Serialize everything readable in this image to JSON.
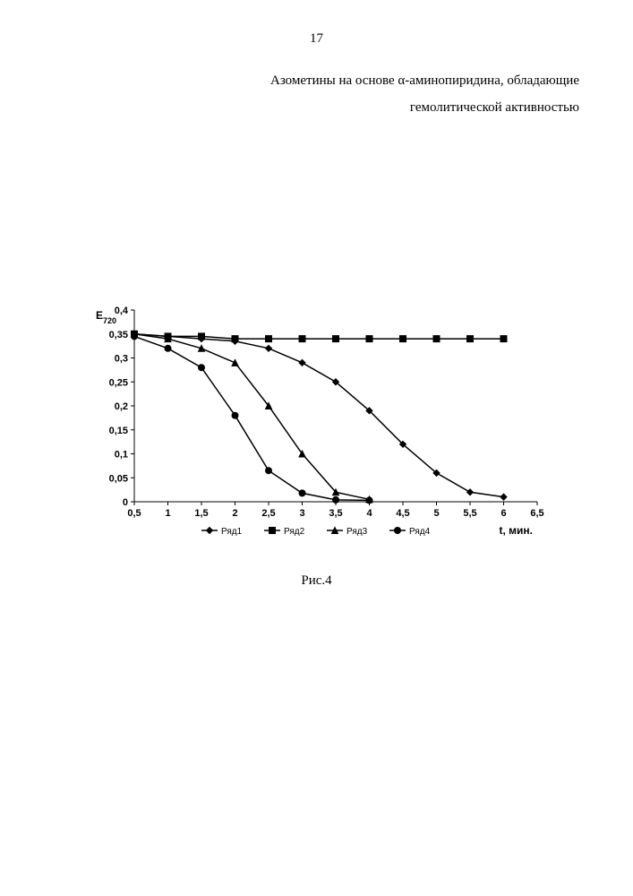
{
  "page_number": "17",
  "title_line1": "Азометины на основе α-аминопиридина, обладающие",
  "title_line2": "гемолитической активностью",
  "caption": "Рис.4",
  "chart": {
    "type": "line",
    "y_axis_label": "E",
    "y_axis_sub": "720",
    "x_axis_label": "t, мин.",
    "x_ticks": [
      "0,5",
      "1",
      "1,5",
      "2",
      "2,5",
      "3",
      "3,5",
      "4",
      "4,5",
      "5",
      "5,5",
      "6",
      "6,5"
    ],
    "y_ticks": [
      "0",
      "0,05",
      "0,1",
      "0,15",
      "0,2",
      "0,25",
      "0,3",
      "0,35",
      "0,4"
    ],
    "xlim": [
      0.5,
      6.5
    ],
    "ylim": [
      0,
      0.4
    ],
    "x_tick_step": 0.5,
    "y_tick_step": 0.05,
    "background_color": "#ffffff",
    "axis_color": "#000000",
    "line_color": "#000000",
    "line_width": 1.5,
    "marker_size": 5,
    "tick_fontsize": 11,
    "label_fontsize": 12,
    "legend_fontsize": 10,
    "grid": false,
    "series": [
      {
        "name": "Ряд1",
        "marker": "diamond",
        "x": [
          0.5,
          1,
          1.5,
          2,
          2.5,
          3,
          3.5,
          4,
          4.5,
          5,
          5.5,
          6
        ],
        "y": [
          0.35,
          0.345,
          0.34,
          0.335,
          0.32,
          0.29,
          0.25,
          0.19,
          0.12,
          0.06,
          0.02,
          0.01
        ]
      },
      {
        "name": "Ряд2",
        "marker": "square",
        "x": [
          0.5,
          1,
          1.5,
          2,
          2.5,
          3,
          3.5,
          4,
          4.5,
          5,
          5.5,
          6
        ],
        "y": [
          0.35,
          0.345,
          0.345,
          0.34,
          0.34,
          0.34,
          0.34,
          0.34,
          0.34,
          0.34,
          0.34,
          0.34
        ]
      },
      {
        "name": "Ряд3",
        "marker": "triangle",
        "x": [
          0.5,
          1,
          1.5,
          2,
          2.5,
          3,
          3.5,
          4
        ],
        "y": [
          0.35,
          0.34,
          0.32,
          0.29,
          0.2,
          0.1,
          0.02,
          0.005
        ]
      },
      {
        "name": "Ряд4",
        "marker": "circle",
        "x": [
          0.5,
          1,
          1.5,
          2,
          2.5,
          3,
          3.5,
          4
        ],
        "y": [
          0.345,
          0.32,
          0.28,
          0.18,
          0.065,
          0.018,
          0.004,
          0.003
        ]
      }
    ],
    "legend": {
      "position": "bottom",
      "items": [
        "Ряд1",
        "Ряд2",
        "Ряд3",
        "Ряд4"
      ]
    }
  }
}
